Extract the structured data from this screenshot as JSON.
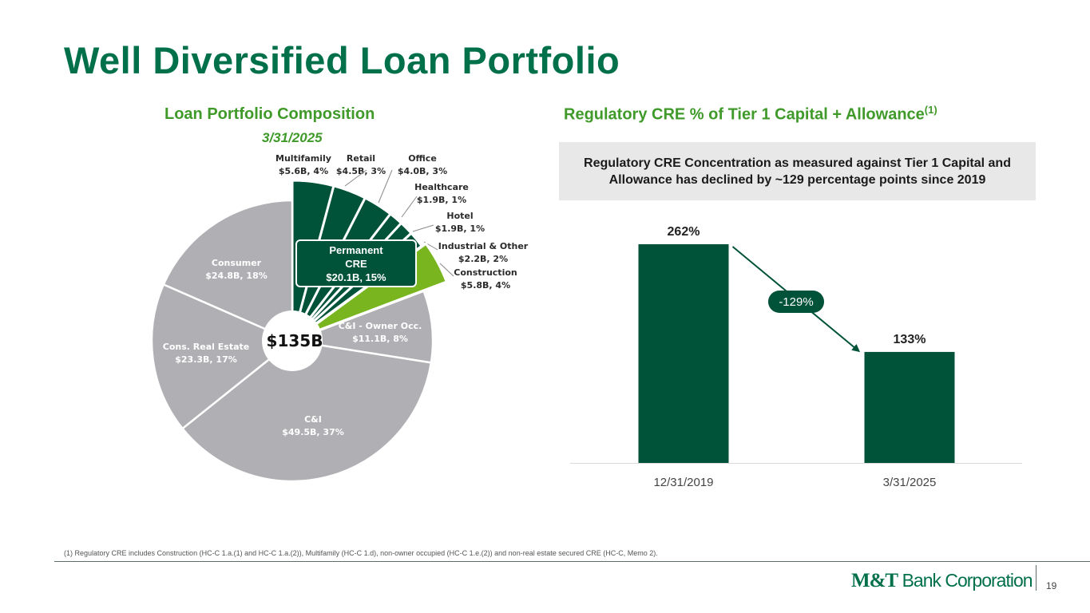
{
  "slide": {
    "title": "Well Diversified Loan Portfolio",
    "left_subtitle": "Loan Portfolio Composition",
    "left_date": "3/31/2025",
    "right_subtitle": "Regulatory CRE % of Tier 1 Capital + Allowance",
    "right_subtitle_sup": "(1)",
    "callout": "Regulatory CRE Concentration as measured against Tier 1 Capital and Allowance has declined by ~129 percentage points since 2019",
    "footnote": "(1) Regulatory CRE includes Construction (HC-C 1.a.(1) and HC-C 1.a.(2)), Multifamily (HC-C 1.d), non-owner occupied (HC-C 1.e.(2)) and  non-real estate secured CRE (HC-C, Memo 2).",
    "logo": {
      "part1": "M&T",
      "part2": "Bank Corporation"
    },
    "page_number": "19"
  },
  "colors": {
    "green_dark": "#005238",
    "green_light": "#78b51f",
    "gray": "#b0afb3",
    "title_green": "#00704a",
    "subtitle_green": "#3f9a2a"
  },
  "chart_data": [
    {
      "type": "pie",
      "center_label": "$135B",
      "unit": "$B",
      "slices": [
        {
          "name": "Multifamily",
          "detail": "$5.6B, 4%",
          "value": 5.6,
          "group": "cre"
        },
        {
          "name": "Retail",
          "detail": "$4.5B, 3%",
          "value": 4.5,
          "group": "cre"
        },
        {
          "name": "Office",
          "detail": "$4.0B, 3%",
          "value": 4.0,
          "group": "cre"
        },
        {
          "name": "Healthcare",
          "detail": "$1.9B, 1%",
          "value": 1.9,
          "group": "cre"
        },
        {
          "name": "Hotel",
          "detail": "$1.9B, 1%",
          "value": 1.9,
          "group": "cre"
        },
        {
          "name": "Industrial & Other",
          "detail": "$2.2B, 2%",
          "value": 2.2,
          "group": "cre"
        },
        {
          "name": "Construction",
          "detail": "$5.8B, 4%",
          "value": 5.8,
          "group": "construction"
        },
        {
          "name": "C&I - Owner Occ.",
          "detail": "$11.1B, 8%",
          "value": 11.1,
          "group": "other"
        },
        {
          "name": "C&I",
          "detail": "$49.5B, 37%",
          "value": 49.5,
          "group": "other"
        },
        {
          "name": "Cons. Real Estate",
          "detail": "$23.3B, 17%",
          "value": 23.3,
          "group": "other"
        },
        {
          "name": "Consumer",
          "detail": "$24.8B, 18%",
          "value": 24.8,
          "group": "other"
        }
      ],
      "group_box": {
        "lines": [
          "Permanent",
          "CRE",
          "$20.1B, 15%"
        ]
      }
    },
    {
      "type": "bar",
      "categories": [
        "12/31/2019",
        "3/31/2025"
      ],
      "values": [
        262,
        133
      ],
      "value_labels": [
        "262%",
        "133%"
      ],
      "ylim": [
        0,
        300
      ],
      "annotation": "-129%"
    }
  ]
}
